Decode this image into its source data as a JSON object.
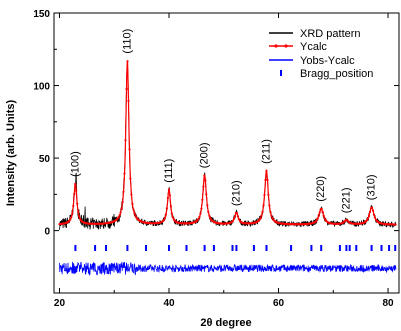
{
  "chart_data": {
    "type": "line",
    "title": "",
    "xlabel": "2θ degree",
    "ylabel": "Intensity (arb. Units)",
    "xlim": [
      19,
      82
    ],
    "ylim": [
      -43,
      150
    ],
    "x_ticks": [
      20,
      40,
      60,
      80
    ],
    "y_ticks": [
      0,
      50,
      100,
      150
    ],
    "grid": false,
    "legend_position": "top-right",
    "colors": {
      "xrd": "#000000",
      "ycalc": "#ff0000",
      "diff": "#0000ff",
      "bragg": "#0000ff"
    },
    "background": 4,
    "peaks": [
      {
        "label": "(100)",
        "x": 22.9,
        "y": 28,
        "width": 0.35
      },
      {
        "label": "(110)",
        "x": 32.4,
        "y": 113,
        "width": 0.35
      },
      {
        "label": "(111)",
        "x": 40.0,
        "y": 24,
        "width": 0.35
      },
      {
        "label": "(200)",
        "x": 46.5,
        "y": 34,
        "width": 0.4
      },
      {
        "label": "(210)",
        "x": 52.3,
        "y": 8,
        "width": 0.4
      },
      {
        "label": "(211)",
        "x": 57.8,
        "y": 37,
        "width": 0.4
      },
      {
        "label": "(220)",
        "x": 67.8,
        "y": 11,
        "width": 0.5
      },
      {
        "label": "(221)",
        "x": 72.4,
        "y": 3,
        "width": 0.5
      },
      {
        "label": "(310)",
        "x": 77.0,
        "y": 12,
        "width": 0.5
      }
    ],
    "bragg_positions": [
      22.9,
      26.5,
      28.5,
      32.4,
      35.8,
      40.0,
      43.2,
      46.5,
      48.2,
      51.6,
      52.3,
      55.5,
      57.8,
      62.3,
      66.0,
      67.8,
      71.2,
      72.4,
      73.0,
      74.2,
      77.0,
      78.8,
      80.2,
      81.3
    ],
    "bragg_y": -12,
    "diff_level": -26,
    "series": [
      {
        "name": "XRD pattern",
        "style": "line",
        "color": "#000000"
      },
      {
        "name": "Ycalc",
        "style": "line-markers",
        "color": "#ff0000"
      },
      {
        "name": "Yobs-Ycalc",
        "style": "line",
        "color": "#0000ff"
      },
      {
        "name": "Bragg_position",
        "style": "ticks",
        "color": "#0000ff"
      }
    ]
  }
}
